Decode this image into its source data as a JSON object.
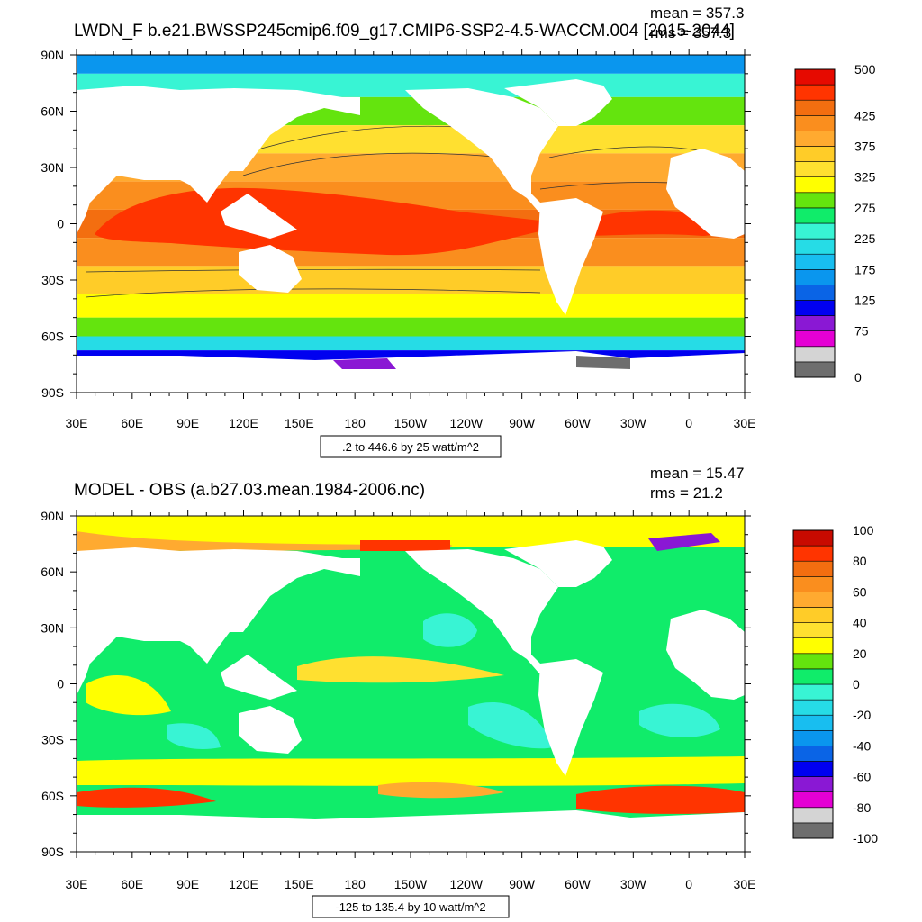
{
  "panels": [
    {
      "title": "LWDN_F b.e21.BWSSP245cmip6.f09_g17.CMIP6-SSP2-4.5-WACCM.004 [2015-2044]",
      "mean": "mean = 357.3",
      "rms": "rms = 357.3",
      "range": ".2 to 446.6 by 25 watt/m^2",
      "colorbar_labels": [
        "500",
        "425",
        "375",
        "325",
        "275",
        "225",
        "175",
        "125",
        "75",
        "0"
      ]
    },
    {
      "title": "MODEL - OBS (a.b27.03.mean.1984-2006.nc)",
      "mean": "mean = 15.47",
      "rms": "rms = 21.2",
      "range": "-125 to 135.4 by 10 watt/m^2",
      "colorbar_labels": [
        "100",
        "80",
        "60",
        "40",
        "20",
        "0",
        "-20",
        "-40",
        "-60",
        "-80",
        "-100"
      ]
    }
  ],
  "chart_data": [
    {
      "type": "heatmap",
      "title": "LWDN_F b.e21.BWSSP245cmip6.f09_g17.CMIP6-SSP2-4.5-WACCM.004 [2015-2044]",
      "x_ticks": [
        "30E",
        "60E",
        "90E",
        "120E",
        "150E",
        "180",
        "150W",
        "120W",
        "90W",
        "60W",
        "30W",
        "0",
        "30E"
      ],
      "y_ticks": [
        "90N",
        "60N",
        "30N",
        "0",
        "30S",
        "60S",
        "90S"
      ],
      "xlim": [
        30,
        390
      ],
      "ylim": [
        -90,
        90
      ],
      "units": "watt/m^2",
      "stats": {
        "mean": 357.3,
        "rms": 357.3
      },
      "contour_range": {
        "min": 0.2,
        "max": 446.6,
        "interval": 25
      },
      "colorbar": {
        "levels": [
          0,
          25,
          50,
          75,
          100,
          125,
          150,
          175,
          200,
          225,
          250,
          275,
          300,
          325,
          350,
          375,
          400,
          425,
          450,
          475,
          500
        ],
        "colors": [
          "#6e6e6e",
          "#d4d4d4",
          "#e400d4",
          "#8a18d4",
          "#0000f0",
          "#0a64e6",
          "#0a96ee",
          "#18bef0",
          "#26dce6",
          "#38f4d4",
          "#10ec6a",
          "#64e40e",
          "#ffff00",
          "#ffe030",
          "#ffcc28",
          "#ffaa30",
          "#fa8e1e",
          "#f36e10",
          "#ff3400",
          "#e60a00"
        ]
      },
      "approx_zonal_profile": [
        {
          "lat": 85,
          "value": 170
        },
        {
          "lat": 75,
          "value": 230
        },
        {
          "lat": 60,
          "value": 290
        },
        {
          "lat": 45,
          "value": 330
        },
        {
          "lat": 30,
          "value": 380
        },
        {
          "lat": 15,
          "value": 410
        },
        {
          "lat": 0,
          "value": 430
        },
        {
          "lat": -15,
          "value": 410
        },
        {
          "lat": -30,
          "value": 370
        },
        {
          "lat": -45,
          "value": 320
        },
        {
          "lat": -55,
          "value": 290
        },
        {
          "lat": -65,
          "value": 210
        },
        {
          "lat": -70,
          "value": 120
        }
      ]
    },
    {
      "type": "heatmap",
      "title": "MODEL - OBS (a.b27.03.mean.1984-2006.nc)",
      "x_ticks": [
        "30E",
        "60E",
        "90E",
        "120E",
        "150E",
        "180",
        "150W",
        "120W",
        "90W",
        "60W",
        "30W",
        "0",
        "30E"
      ],
      "y_ticks": [
        "90N",
        "60N",
        "30N",
        "0",
        "30S",
        "60S",
        "90S"
      ],
      "xlim": [
        30,
        390
      ],
      "ylim": [
        -90,
        90
      ],
      "units": "watt/m^2",
      "stats": {
        "mean": 15.47,
        "rms": 21.2
      },
      "contour_range": {
        "min": -125,
        "max": 135.4,
        "interval": 10
      },
      "colorbar": {
        "levels": [
          -100,
          -90,
          -80,
          -70,
          -60,
          -50,
          -40,
          -30,
          -20,
          -10,
          0,
          10,
          20,
          30,
          40,
          50,
          60,
          70,
          80,
          90,
          100
        ],
        "colors": [
          "#6e6e6e",
          "#d4d4d4",
          "#e400d4",
          "#8a18d4",
          "#0000f0",
          "#0a64e6",
          "#0a96ee",
          "#18bef0",
          "#26dce6",
          "#38f4d4",
          "#10ec6a",
          "#64e40e",
          "#ffff00",
          "#ffe030",
          "#ffcc28",
          "#ffaa30",
          "#fa8e1e",
          "#f36e10",
          "#ff3400",
          "#c80a00"
        ]
      },
      "approx_zonal_profile": [
        {
          "lat": 85,
          "value": 25
        },
        {
          "lat": 75,
          "value": 20
        },
        {
          "lat": 60,
          "value": 10
        },
        {
          "lat": 45,
          "value": 12
        },
        {
          "lat": 30,
          "value": 10
        },
        {
          "lat": 15,
          "value": 12
        },
        {
          "lat": 0,
          "value": 15
        },
        {
          "lat": -15,
          "value": 8
        },
        {
          "lat": -30,
          "value": 5
        },
        {
          "lat": -45,
          "value": 15
        },
        {
          "lat": -55,
          "value": 20
        },
        {
          "lat": -62,
          "value": 65
        },
        {
          "lat": -68,
          "value": 20
        }
      ]
    }
  ]
}
